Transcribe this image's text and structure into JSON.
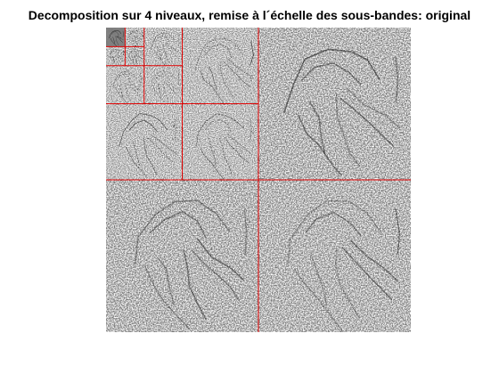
{
  "figure": {
    "title": "Decomposition sur 4 niveaux, remise à l´échelle des sous-bandes: original"
  },
  "image": {
    "levels": 4,
    "background_color": "#ffffff",
    "boundary_color": "#e00000",
    "ink_color": "#000000",
    "approximation_tone": "#777777"
  }
}
